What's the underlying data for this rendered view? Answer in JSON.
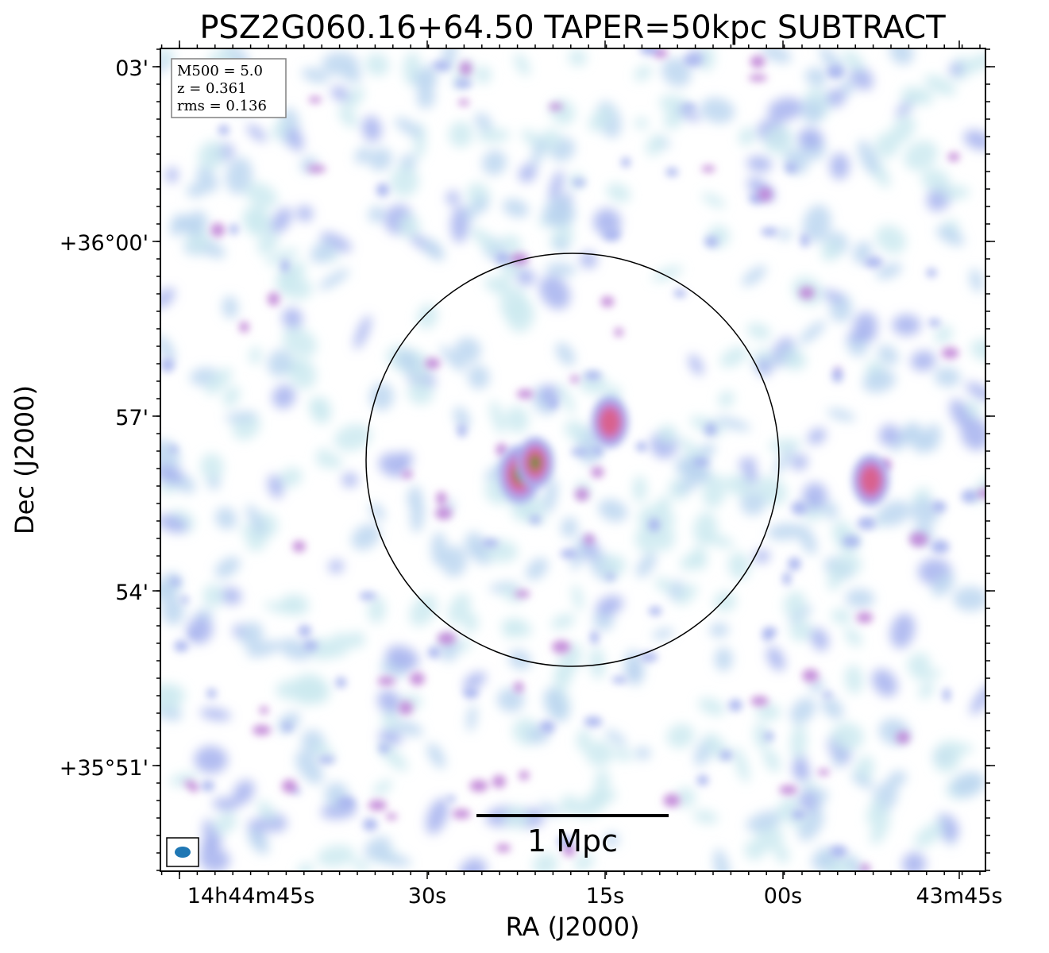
{
  "chart_data": {
    "type": "heatmap",
    "title": "PSZ2G060.16+64.50 TAPER=50kpc SUBTRACT",
    "xlabel": "RA (J2000)",
    "ylabel": "Dec (J2000)",
    "x_ticks": [
      "14h44m45s",
      "30s",
      "15s",
      "00s",
      "43m45s"
    ],
    "y_ticks": [
      "03'",
      "+36°00'",
      "57'",
      "54'",
      "+35°51'"
    ],
    "info_box": [
      "M500 = 5.0",
      "z = 0.361",
      "rms = 0.136"
    ],
    "scalebar_label": "1 Mpc",
    "colormap": [
      "#cdeaf0",
      "#bcd6f0",
      "#a6b2ee",
      "#c083d6",
      "#d9628e",
      "#b07a5a",
      "#4c8f3a"
    ],
    "circle_color": "#000000",
    "beam_color": "#1f77b4",
    "sources": [
      {
        "ra_s": 22.2,
        "dec_m": 56.0,
        "peak": 1.0,
        "spread": 0.25
      },
      {
        "ra_s": 20.9,
        "dec_m": 56.2,
        "peak": 0.95,
        "spread": 0.22
      },
      {
        "ra_s": 14.6,
        "dec_m": 56.9,
        "peak": 0.75,
        "spread": 0.22
      },
      {
        "ra_s": 52.6,
        "dec_m": 55.9,
        "peak": 0.75,
        "spread": 0.22
      }
    ]
  }
}
